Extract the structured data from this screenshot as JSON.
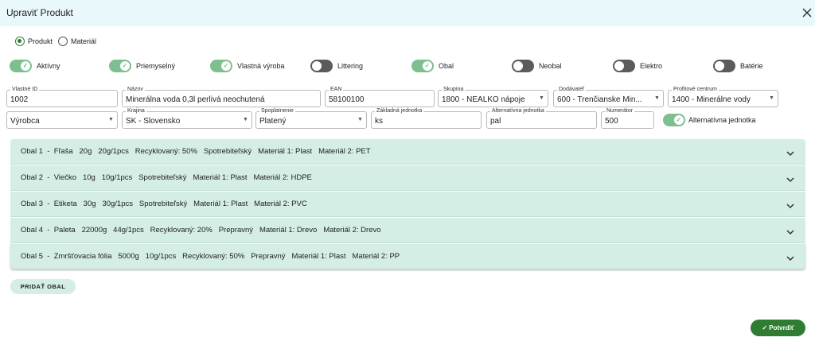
{
  "header": {
    "title": "Upraviť Produkt"
  },
  "radio": {
    "options": [
      "Produkt",
      "Materiál"
    ],
    "selected": 0
  },
  "toggles": [
    {
      "label": "Aktívny",
      "on": true
    },
    {
      "label": "Priemyselný",
      "on": true
    },
    {
      "label": "Vlastná výroba",
      "on": true
    },
    {
      "label": "Littering",
      "on": false
    },
    {
      "label": "Obal",
      "on": true
    },
    {
      "label": "Neobal",
      "on": false
    },
    {
      "label": "Elektro",
      "on": false
    },
    {
      "label": "Batérie",
      "on": false
    }
  ],
  "fields": [
    {
      "label": "Vlastné ID",
      "value": "1002",
      "kind": "text"
    },
    {
      "label": "Názov",
      "value": "Minerálna voda 0,3l perlivá neochutená",
      "kind": "text"
    },
    {
      "label": "EAN",
      "value": "58100100",
      "kind": "text"
    },
    {
      "label": "Skupina",
      "value": "1800 - NEALKO nápoje",
      "kind": "select"
    },
    {
      "label": "Dodávateľ",
      "value": "600 - Trenčianske Min...",
      "kind": "select"
    },
    {
      "label": "Profitové centrum",
      "value": "1400 - Minerálne vody",
      "kind": "select"
    },
    {
      "value": "Výrobca",
      "kind": "select"
    },
    {
      "label": "Krajina",
      "value": "SK - Slovensko",
      "kind": "select"
    },
    {
      "label": "Spoplatnenie",
      "value": "Platený",
      "kind": "select"
    },
    {
      "label": "Základná jednotka",
      "value": "ks",
      "kind": "text"
    },
    {
      "label": "Alternatívna jednotka",
      "value": "pal",
      "kind": "text"
    },
    {
      "label": "Numerátor",
      "value": "500",
      "kind": "text"
    }
  ],
  "alt_toggle": {
    "label": "Alternatívna jednotka",
    "on": true
  },
  "packages": [
    "Obal 1  -  Fľaša   20g   20g/1pcs   Recyklovaný: 50%   Spotrebiteľský   Materiál 1: Plast   Materiál 2: PET",
    "Obal 2  -  Viečko   10g   10g/1pcs   Spotrebiteľský   Materiál 1: Plast   Materiál 2: HDPE",
    "Obal 3  -  Etiketa   30g   30g/1pcs   Spotrebiteľský   Materiál 1: Plast   Materiál 2: PVC",
    "Obal 4  -  Paleta   22000g   44g/1pcs   Recyklovaný: 20%   Prepravný   Materiál 1: Drevo   Materiál 2: Drevo",
    "Obal 5  -  Zmršťovacia fólia   5000g   10g/1pcs   Recyklovaný: 50%   Prepravný   Materiál 1: Plast   Materiál 2: PP"
  ],
  "buttons": {
    "add": "PRIDAŤ OBAL",
    "confirm": "Potvrdiť"
  }
}
